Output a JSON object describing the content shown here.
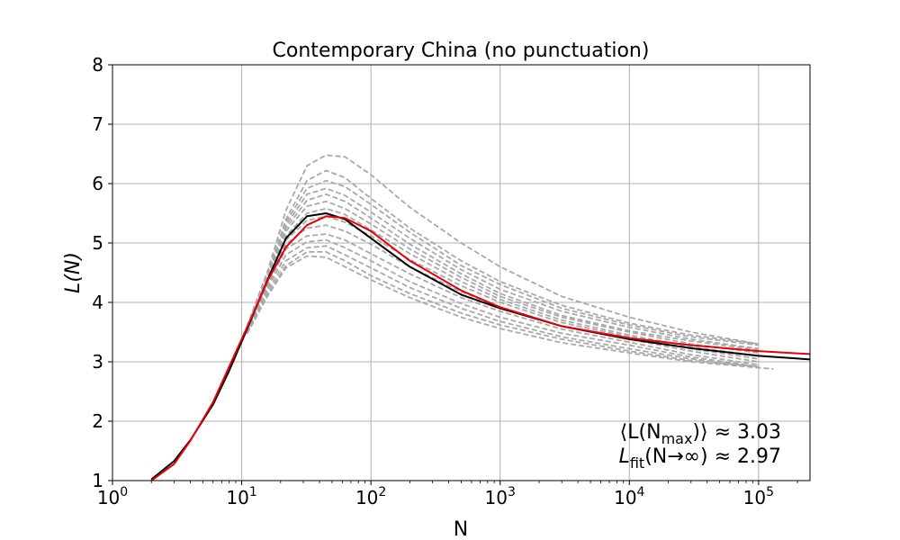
{
  "chart_data": {
    "type": "line",
    "title": "Contemporary China (no punctuation)",
    "xlabel": "N",
    "ylabel": "L(N)",
    "xscale": "log",
    "xlim": [
      1,
      250000
    ],
    "ylim": [
      1,
      8
    ],
    "grid": true,
    "x_ticks": [
      {
        "value": 1,
        "label": "10",
        "exp": "0"
      },
      {
        "value": 10,
        "label": "10",
        "exp": "1"
      },
      {
        "value": 100,
        "label": "10",
        "exp": "2"
      },
      {
        "value": 1000,
        "label": "10",
        "exp": "3"
      },
      {
        "value": 10000,
        "label": "10",
        "exp": "4"
      },
      {
        "value": 100000,
        "label": "10",
        "exp": "5"
      }
    ],
    "y_ticks": [
      1,
      2,
      3,
      4,
      5,
      6,
      7,
      8
    ],
    "series": [
      {
        "color": "#000000",
        "style": "solid",
        "x": [
          2,
          3,
          4,
          6,
          8,
          11,
          16,
          22,
          32,
          45,
          63,
          100,
          200,
          500,
          1000,
          3000,
          10000,
          30000,
          100000,
          250000
        ],
        "y": [
          1.02,
          1.33,
          1.68,
          2.28,
          2.85,
          3.55,
          4.4,
          5.08,
          5.45,
          5.5,
          5.4,
          5.08,
          4.6,
          4.13,
          3.9,
          3.6,
          3.38,
          3.23,
          3.1,
          3.04
        ]
      },
      {
        "color": "#e8000b",
        "style": "solid",
        "x": [
          2,
          3,
          4,
          6,
          8,
          11,
          16,
          22,
          32,
          45,
          63,
          100,
          200,
          500,
          1000,
          3000,
          10000,
          30000,
          100000,
          250000
        ],
        "y": [
          1.0,
          1.28,
          1.67,
          2.32,
          2.92,
          3.58,
          4.38,
          4.93,
          5.3,
          5.45,
          5.42,
          5.2,
          4.7,
          4.2,
          3.92,
          3.6,
          3.4,
          3.28,
          3.18,
          3.13
        ]
      },
      {
        "color": "#a9a9a9",
        "style": "dashed",
        "x": [
          11,
          16,
          22,
          32,
          45,
          63,
          100,
          200,
          500,
          1000,
          3000,
          10000,
          30000,
          100000
        ],
        "y": [
          3.6,
          4.55,
          5.55,
          6.3,
          6.48,
          6.45,
          6.15,
          5.6,
          5.0,
          4.6,
          4.1,
          3.75,
          3.5,
          3.3
        ]
      },
      {
        "color": "#a9a9a9",
        "style": "dashed",
        "x": [
          11,
          16,
          22,
          32,
          45,
          63,
          100,
          200,
          500,
          1000,
          3000,
          10000,
          30000,
          100000
        ],
        "y": [
          3.58,
          4.5,
          5.4,
          6.05,
          6.22,
          6.1,
          5.75,
          5.25,
          4.7,
          4.35,
          3.95,
          3.65,
          3.45,
          3.3
        ]
      },
      {
        "color": "#a9a9a9",
        "style": "dashed",
        "x": [
          11,
          16,
          22,
          32,
          45,
          63,
          100,
          200,
          500,
          1000,
          3000,
          10000,
          30000,
          100000
        ],
        "y": [
          3.57,
          4.48,
          5.35,
          5.92,
          6.05,
          5.95,
          5.65,
          5.18,
          4.62,
          4.3,
          3.9,
          3.62,
          3.42,
          3.28
        ]
      },
      {
        "color": "#a9a9a9",
        "style": "dashed",
        "x": [
          11,
          16,
          22,
          32,
          45,
          63,
          100,
          200,
          500,
          1000,
          3000,
          10000,
          30000,
          100000
        ],
        "y": [
          3.56,
          4.45,
          5.3,
          5.82,
          5.92,
          5.8,
          5.52,
          5.08,
          4.55,
          4.22,
          3.85,
          3.58,
          3.38,
          3.22
        ]
      },
      {
        "color": "#a9a9a9",
        "style": "dashed",
        "x": [
          11,
          16,
          22,
          32,
          45,
          63,
          100,
          200,
          500,
          1000,
          3000,
          10000,
          30000,
          100000
        ],
        "y": [
          3.55,
          4.43,
          5.25,
          5.72,
          5.82,
          5.7,
          5.42,
          4.98,
          4.48,
          4.15,
          3.78,
          3.52,
          3.35,
          3.2
        ]
      },
      {
        "color": "#a9a9a9",
        "style": "dashed",
        "x": [
          11,
          16,
          22,
          32,
          45,
          63,
          100,
          200,
          500,
          1000,
          3000,
          10000,
          30000,
          100000
        ],
        "y": [
          3.55,
          4.42,
          5.2,
          5.62,
          5.7,
          5.58,
          5.32,
          4.9,
          4.42,
          4.1,
          3.75,
          3.5,
          3.3,
          3.15
        ]
      },
      {
        "color": "#a9a9a9",
        "style": "dashed",
        "x": [
          11,
          16,
          22,
          32,
          45,
          63,
          100,
          200,
          500,
          1000,
          3000,
          10000,
          30000,
          100000
        ],
        "y": [
          3.54,
          4.4,
          5.12,
          5.5,
          5.58,
          5.48,
          5.22,
          4.82,
          4.35,
          4.05,
          3.7,
          3.45,
          3.25,
          3.1
        ]
      },
      {
        "color": "#a9a9a9",
        "style": "dashed",
        "x": [
          11,
          16,
          22,
          32,
          45,
          63,
          100,
          200,
          500,
          1000,
          3000,
          10000,
          30000,
          100000
        ],
        "y": [
          3.53,
          4.38,
          5.05,
          5.38,
          5.45,
          5.35,
          5.12,
          4.72,
          4.28,
          4.0,
          3.66,
          3.42,
          3.22,
          3.05
        ]
      },
      {
        "color": "#a9a9a9",
        "style": "dashed",
        "x": [
          11,
          16,
          22,
          32,
          45,
          63,
          100,
          200,
          500,
          1000,
          3000,
          10000,
          30000,
          100000
        ],
        "y": [
          3.52,
          4.35,
          4.98,
          5.25,
          5.3,
          5.2,
          4.98,
          4.6,
          4.18,
          3.92,
          3.6,
          3.38,
          3.18,
          3.0
        ]
      },
      {
        "color": "#a9a9a9",
        "style": "dashed",
        "x": [
          11,
          16,
          22,
          32,
          45,
          63,
          100,
          200,
          500,
          1000,
          3000,
          10000,
          30000,
          100000
        ],
        "y": [
          3.51,
          4.3,
          4.9,
          5.12,
          5.15,
          5.05,
          4.82,
          4.48,
          4.08,
          3.85,
          3.55,
          3.33,
          3.12,
          2.95
        ]
      },
      {
        "color": "#a9a9a9",
        "style": "dashed",
        "x": [
          11,
          16,
          22,
          32,
          45,
          63,
          100,
          200,
          500,
          1000,
          3000,
          10000,
          30000,
          100000
        ],
        "y": [
          3.5,
          4.25,
          4.8,
          5.02,
          5.05,
          4.92,
          4.7,
          4.35,
          3.98,
          3.75,
          3.48,
          3.28,
          3.08,
          2.92
        ]
      },
      {
        "color": "#a9a9a9",
        "style": "dashed",
        "x": [
          11,
          16,
          22,
          32,
          45,
          63,
          100,
          200,
          500,
          1000,
          3000,
          10000,
          30000,
          100000
        ],
        "y": [
          3.49,
          4.2,
          4.7,
          4.92,
          4.95,
          4.8,
          4.58,
          4.25,
          3.9,
          3.68,
          3.42,
          3.22,
          3.05,
          2.9
        ]
      },
      {
        "color": "#a9a9a9",
        "style": "dashed",
        "x": [
          11,
          16,
          22,
          32,
          45,
          63,
          100,
          200,
          500,
          1000,
          3000,
          10000,
          30000,
          100000
        ],
        "y": [
          3.48,
          4.15,
          4.62,
          4.85,
          4.85,
          4.7,
          4.45,
          4.15,
          3.82,
          3.62,
          3.38,
          3.18,
          3.02,
          2.92
        ]
      },
      {
        "color": "#a9a9a9",
        "style": "dashed",
        "x": [
          11,
          16,
          22,
          32,
          45,
          63,
          100,
          200,
          500,
          1000,
          3000,
          10000,
          30000,
          130000
        ],
        "y": [
          3.47,
          4.12,
          4.58,
          4.78,
          4.76,
          4.6,
          4.38,
          4.08,
          3.75,
          3.56,
          3.32,
          3.15,
          3.0,
          2.88
        ]
      }
    ],
    "annotations": [
      {
        "text": "⟨L(N",
        "sub": "max",
        "tail": ")⟩ ≈ 3.03"
      },
      {
        "text": "L",
        "sub": "fit",
        "tail": "(N→∞) ≈ 2.97"
      }
    ]
  }
}
